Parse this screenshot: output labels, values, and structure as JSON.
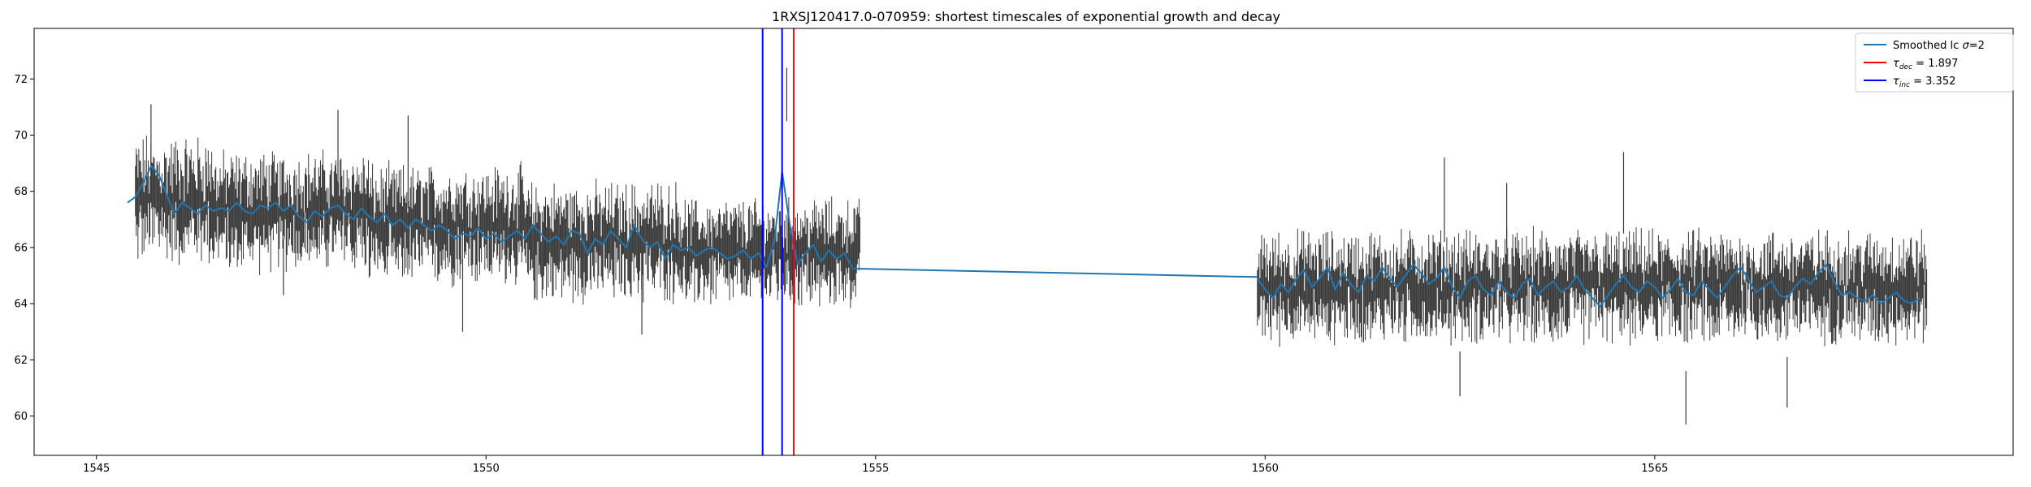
{
  "chart_data": {
    "type": "line",
    "title": "1RXSJ120417.0-070959: shortest timescales of exponential growth and decay",
    "xlabel": "",
    "ylabel": "",
    "xlim": [
      1544.2,
      1569.6
    ],
    "ylim": [
      58.6,
      73.8
    ],
    "xticks": [
      1545,
      1550,
      1555,
      1560,
      1565
    ],
    "yticks": [
      60,
      62,
      64,
      66,
      68,
      70,
      72
    ],
    "grid": false,
    "legend_position": "top-right",
    "colors": {
      "smoothed": "#1f77b4",
      "errorbars": "#3a3a3a",
      "tau_dec": "#ff0000",
      "tau_inc": "#0000ff"
    },
    "series": [
      {
        "name": "Smoothed lc σ=2",
        "legend_main": "Smoothed lc ",
        "legend_sigma": "σ",
        "legend_tail": "=2",
        "segments": [
          {
            "x": [
              1545.4,
              1545.5,
              1545.6,
              1545.7,
              1545.8,
              1545.9,
              1546.0,
              1546.1,
              1546.2,
              1546.3,
              1546.4,
              1546.5,
              1546.6,
              1546.7,
              1546.8,
              1546.9,
              1547.0,
              1547.1,
              1547.2,
              1547.3,
              1547.4,
              1547.5,
              1547.6,
              1547.7,
              1547.8,
              1547.9,
              1548.0,
              1548.1,
              1548.2,
              1548.3,
              1548.4,
              1548.5,
              1548.6,
              1548.7,
              1548.8,
              1548.9,
              1549.0,
              1549.1,
              1549.2,
              1549.3,
              1549.4,
              1549.5,
              1549.6,
              1549.7,
              1549.8,
              1549.9,
              1550.0,
              1550.1,
              1550.2,
              1550.3,
              1550.4,
              1550.5,
              1550.6,
              1550.7,
              1550.8,
              1550.9,
              1551.0,
              1551.1,
              1551.2,
              1551.3,
              1551.4,
              1551.5,
              1551.6,
              1551.7,
              1551.8,
              1551.9,
              1552.0,
              1552.1,
              1552.2,
              1552.3,
              1552.4,
              1552.5,
              1552.6,
              1552.7,
              1552.8,
              1552.9,
              1553.0,
              1553.1,
              1553.2,
              1553.3,
              1553.4,
              1553.5,
              1553.6,
              1553.7,
              1553.8,
              1553.9,
              1554.0,
              1554.1,
              1554.2,
              1554.3,
              1554.4,
              1554.5,
              1554.6,
              1554.7
            ],
            "y": [
              67.6,
              67.8,
              68.3,
              68.9,
              68.6,
              67.9,
              67.2,
              67.6,
              67.4,
              67.2,
              67.5,
              67.3,
              67.4,
              67.3,
              67.6,
              67.3,
              67.2,
              67.5,
              67.4,
              67.6,
              67.3,
              67.5,
              67.1,
              66.9,
              67.3,
              67.1,
              67.4,
              67.5,
              67.2,
              67.0,
              67.4,
              67.1,
              66.9,
              67.2,
              66.8,
              67.0,
              66.7,
              67.0,
              66.8,
              66.6,
              66.8,
              66.6,
              66.3,
              66.5,
              66.4,
              66.7,
              66.3,
              66.5,
              66.2,
              66.4,
              66.6,
              66.3,
              66.8,
              66.5,
              66.2,
              66.4,
              66.1,
              66.6,
              66.5,
              65.8,
              66.3,
              66.1,
              66.6,
              66.3,
              66.0,
              66.8,
              66.3,
              66.0,
              66.2,
              65.6,
              66.1,
              65.9,
              66.0,
              65.7,
              65.9,
              66.0,
              65.8,
              65.6,
              65.7,
              65.9,
              65.6,
              65.8,
              65.3,
              66.2,
              68.7,
              66.8,
              65.4,
              65.8,
              66.1,
              65.5,
              65.9,
              65.6,
              65.8,
              65.3
            ]
          },
          {
            "x": [
              1554.7,
              1559.9
            ],
            "y": [
              65.25,
              64.95
            ]
          },
          {
            "x": [
              1559.9,
              1560.0,
              1560.1,
              1560.2,
              1560.3,
              1560.4,
              1560.5,
              1560.6,
              1560.7,
              1560.8,
              1560.9,
              1561.0,
              1561.1,
              1561.2,
              1561.3,
              1561.4,
              1561.5,
              1561.6,
              1561.7,
              1561.8,
              1561.9,
              1562.0,
              1562.1,
              1562.2,
              1562.3,
              1562.4,
              1562.5,
              1562.6,
              1562.7,
              1562.8,
              1562.9,
              1563.0,
              1563.1,
              1563.2,
              1563.3,
              1563.4,
              1563.5,
              1563.6,
              1563.7,
              1563.8,
              1563.9,
              1564.0,
              1564.1,
              1564.2,
              1564.3,
              1564.4,
              1564.5,
              1564.6,
              1564.7,
              1564.8,
              1564.9,
              1565.0,
              1565.1,
              1565.2,
              1565.3,
              1565.4,
              1565.5,
              1565.6,
              1565.7,
              1565.8,
              1565.9,
              1566.0,
              1566.1,
              1566.2,
              1566.3,
              1566.4,
              1566.5,
              1566.6,
              1566.7,
              1566.8,
              1566.9,
              1567.0,
              1567.1,
              1567.2,
              1567.3,
              1567.4,
              1567.5,
              1567.6,
              1567.7,
              1567.8,
              1567.9,
              1568.0,
              1568.1,
              1568.2,
              1568.3,
              1568.4
            ],
            "y": [
              64.9,
              64.5,
              64.2,
              64.7,
              64.4,
              64.9,
              65.2,
              64.6,
              64.9,
              65.3,
              64.5,
              65.1,
              64.7,
              64.4,
              65.0,
              64.8,
              65.3,
              64.9,
              64.6,
              65.0,
              65.4,
              65.1,
              64.7,
              64.9,
              65.3,
              64.6,
              64.2,
              64.8,
              65.0,
              64.5,
              64.3,
              64.8,
              64.4,
              64.2,
              64.7,
              64.9,
              64.3,
              64.6,
              64.8,
              64.4,
              64.6,
              65.0,
              64.5,
              64.2,
              63.9,
              64.3,
              64.7,
              65.0,
              64.6,
              64.4,
              64.8,
              64.6,
              64.2,
              64.5,
              64.9,
              64.4,
              64.3,
              64.8,
              64.5,
              64.2,
              64.6,
              65.0,
              65.3,
              64.9,
              64.4,
              64.6,
              64.8,
              64.3,
              64.2,
              64.6,
              64.9,
              64.7,
              65.1,
              65.4,
              64.8,
              64.3,
              64.4,
              64.2,
              64.1,
              64.3,
              64.0,
              64.2,
              64.4,
              64.1,
              64.0,
              64.2
            ]
          }
        ]
      }
    ],
    "errorbar_data": {
      "ranges": [
        {
          "x0": 1545.5,
          "x1": 1546.5,
          "center": 67.7,
          "spread": 1.0,
          "err": 1.2
        },
        {
          "x0": 1546.5,
          "x1": 1548.5,
          "center": 67.3,
          "spread": 0.8,
          "err": 1.2
        },
        {
          "x0": 1548.5,
          "x1": 1550.5,
          "center": 66.8,
          "spread": 0.8,
          "err": 1.2
        },
        {
          "x0": 1550.5,
          "x1": 1552.5,
          "center": 66.2,
          "spread": 0.8,
          "err": 1.2
        },
        {
          "x0": 1552.5,
          "x1": 1554.8,
          "center": 65.8,
          "spread": 0.7,
          "err": 1.1
        },
        {
          "x0": 1559.9,
          "x1": 1568.5,
          "center": 64.6,
          "spread": 0.8,
          "err": 1.1
        }
      ],
      "outliers": [
        {
          "x": 1545.7,
          "lo": 68.4,
          "hi": 71.1
        },
        {
          "x": 1548.1,
          "lo": 67.6,
          "hi": 70.9
        },
        {
          "x": 1549.0,
          "lo": 67.4,
          "hi": 70.7
        },
        {
          "x": 1547.4,
          "lo": 64.3,
          "hi": 66.3
        },
        {
          "x": 1549.7,
          "lo": 63.0,
          "hi": 65.6
        },
        {
          "x": 1552.0,
          "lo": 62.9,
          "hi": 65.2
        },
        {
          "x": 1553.86,
          "lo": 70.5,
          "hi": 72.4
        },
        {
          "x": 1562.3,
          "lo": 66.2,
          "hi": 69.2
        },
        {
          "x": 1563.1,
          "lo": 66.0,
          "hi": 68.3
        },
        {
          "x": 1564.6,
          "lo": 66.5,
          "hi": 69.4
        },
        {
          "x": 1562.5,
          "lo": 60.7,
          "hi": 62.3
        },
        {
          "x": 1565.4,
          "lo": 59.7,
          "hi": 61.6
        },
        {
          "x": 1566.7,
          "lo": 60.3,
          "hi": 62.1
        }
      ]
    },
    "vlines": [
      {
        "name": "τ_dec = 1.897",
        "x": 1553.95,
        "color": "#ff0000",
        "legend_tau": "τ",
        "legend_sub": "dec",
        "legend_tail": " = 1.897"
      },
      {
        "name": "τ_inc = 3.352",
        "x": 1553.55,
        "color": "#0000ff",
        "legend_tau": "τ",
        "legend_sub": "inc",
        "legend_tail": " = 3.352",
        "extra_x": [
          1553.8
        ]
      }
    ]
  }
}
